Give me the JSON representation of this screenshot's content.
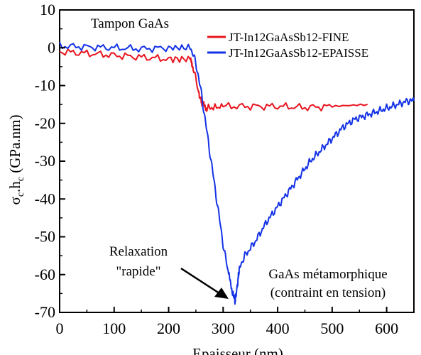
{
  "chart_data": {
    "type": "line",
    "xlabel": "Epaisseur (nm)",
    "ylabel_main": "σ",
    "ylabel_sub1": "c",
    "ylabel_mid": ".h",
    "ylabel_sub2": "c",
    "ylabel_tail": " (GPa.nm)",
    "xlim": [
      0,
      650
    ],
    "ylim": [
      -70,
      10
    ],
    "xticks": [
      0,
      100,
      200,
      300,
      400,
      500,
      600
    ],
    "yticks": [
      10,
      0,
      -10,
      -20,
      -30,
      -40,
      -50,
      -60,
      -70
    ],
    "grid": false,
    "legend_position": "top-right",
    "annotations": {
      "top": "Tampon GaAs",
      "relax_line1": "Relaxation",
      "relax_line2": "\"rapide\"",
      "meta_line1": "GaAs métamorphique",
      "meta_line2": "(contraint en tension)"
    },
    "series": [
      {
        "name": "JT-In12GaAsSb12-FINE",
        "color": "#e8141e",
        "x": [
          0,
          50,
          100,
          150,
          200,
          240,
          245,
          255,
          262,
          270,
          300,
          350,
          400,
          450,
          500,
          565
        ],
        "y": [
          -1,
          -1.5,
          -2,
          -2.5,
          -3,
          -3,
          -5,
          -12,
          -15,
          -16,
          -15.5,
          -15.5,
          -15.5,
          -15.8,
          -15.5,
          -15
        ]
      },
      {
        "name": "JT-In12GaAsSb12-EPAISSE",
        "color": "#1432e6",
        "x": [
          0,
          50,
          100,
          150,
          200,
          240,
          250,
          260,
          270,
          280,
          290,
          300,
          310,
          318,
          322,
          326,
          330,
          340,
          360,
          380,
          400,
          420,
          440,
          460,
          480,
          500,
          520,
          540,
          560,
          580,
          600,
          620,
          640,
          650
        ],
        "y": [
          0.5,
          0.2,
          0,
          -0.3,
          0,
          0,
          -4,
          -12,
          -22,
          -32,
          -42,
          -52,
          -60,
          -65,
          -67,
          -63,
          -58,
          -55,
          -51,
          -46,
          -42,
          -38,
          -34,
          -30,
          -27,
          -24,
          -21,
          -19,
          -18,
          -17,
          -16,
          -15,
          -14,
          -14
        ]
      }
    ]
  }
}
